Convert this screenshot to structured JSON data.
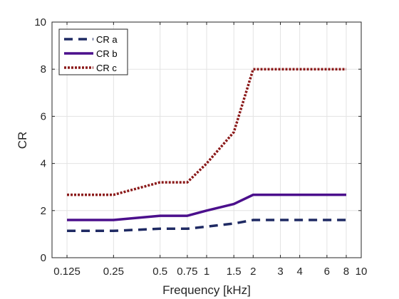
{
  "chart_data": {
    "type": "line",
    "xscale": "log",
    "xlabel": "Frequency [kHz]",
    "ylabel": "CR",
    "xlim": [
      0.1,
      10
    ],
    "ylim": [
      0,
      10
    ],
    "grid": true,
    "legend_position": "top-left",
    "xticks": [
      0.125,
      0.25,
      0.5,
      0.75,
      1,
      1.5,
      2,
      3,
      4,
      6,
      8,
      10
    ],
    "xtick_labels": [
      "0.125",
      "0.25",
      "0.5",
      "0.75",
      "1",
      "1.5",
      "2",
      "3",
      "4",
      "6",
      "8",
      "10"
    ],
    "yticks": [
      0,
      2,
      4,
      6,
      8,
      10
    ],
    "ytick_labels": [
      "0",
      "2",
      "4",
      "6",
      "8",
      "10"
    ],
    "x": [
      0.125,
      0.25,
      0.5,
      0.75,
      1,
      1.5,
      2,
      8
    ],
    "series": [
      {
        "name": "CR a",
        "values": [
          1.14,
          1.14,
          1.23,
          1.23,
          1.32,
          1.45,
          1.6,
          1.6
        ],
        "color": "#1f2a63",
        "style": "dashed"
      },
      {
        "name": "CR b",
        "values": [
          1.6,
          1.6,
          1.78,
          1.78,
          2.0,
          2.28,
          2.67,
          2.67
        ],
        "color": "#4b0f8c",
        "style": "solid"
      },
      {
        "name": "CR c",
        "values": [
          2.67,
          2.67,
          3.2,
          3.2,
          4.0,
          5.33,
          8.0,
          8.0
        ],
        "color": "#8b1a1a",
        "style": "dotted"
      }
    ]
  }
}
